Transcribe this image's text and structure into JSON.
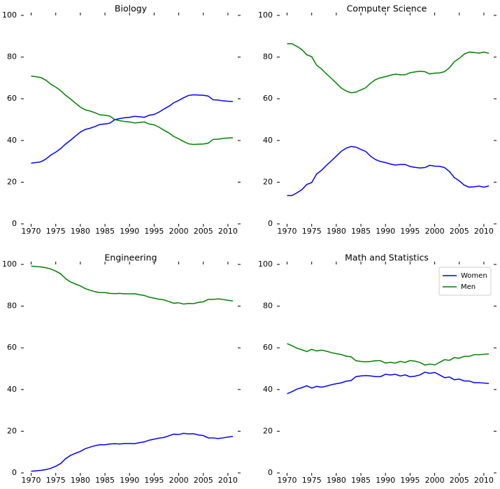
{
  "chart_data": [
    {
      "type": "line",
      "title": "Biology",
      "x": [
        1970,
        1971,
        1972,
        1973,
        1974,
        1975,
        1976,
        1977,
        1978,
        1979,
        1980,
        1981,
        1982,
        1983,
        1984,
        1985,
        1986,
        1987,
        1988,
        1989,
        1990,
        1991,
        1992,
        1993,
        1994,
        1995,
        1996,
        1997,
        1998,
        1999,
        2000,
        2001,
        2002,
        2003,
        2004,
        2005,
        2006,
        2007,
        2008,
        2009,
        2010,
        2011
      ],
      "series": [
        {
          "color": "#0000ff",
          "values": [
            29.1,
            29.4,
            29.8,
            31.1,
            33.0,
            34.4,
            36.1,
            38.3,
            40.1,
            42.1,
            44.0,
            45.3,
            45.9,
            46.7,
            47.7,
            47.9,
            48.3,
            50.0,
            50.5,
            50.9,
            51.1,
            51.6,
            51.4,
            51.1,
            52.1,
            52.5,
            53.6,
            55.1,
            56.4,
            58.1,
            59.2,
            60.5,
            61.6,
            61.9,
            61.8,
            61.7,
            61.3,
            59.5,
            59.4,
            59.0,
            58.8,
            58.7
          ]
        },
        {
          "color": "#008000",
          "values": [
            70.9,
            70.6,
            70.2,
            68.9,
            67.0,
            65.6,
            63.9,
            61.7,
            59.9,
            57.9,
            56.0,
            54.7,
            54.1,
            53.3,
            52.3,
            52.1,
            51.7,
            50.0,
            49.5,
            49.1,
            48.9,
            48.4,
            48.6,
            48.9,
            47.9,
            47.5,
            46.4,
            44.9,
            43.6,
            41.9,
            40.8,
            39.5,
            38.4,
            38.1,
            38.2,
            38.3,
            38.7,
            40.5,
            40.6,
            41.0,
            41.2,
            41.3
          ]
        }
      ],
      "xlim": [
        1968.5,
        2012
      ],
      "xticks": [
        1970,
        1975,
        1980,
        1985,
        1990,
        1995,
        2000,
        2005,
        2010
      ],
      "ylim": [
        0,
        100
      ],
      "yticks": [
        0,
        20,
        40,
        60,
        80,
        100
      ]
    },
    {
      "type": "line",
      "title": "Computer Science",
      "x": [
        1970,
        1971,
        1972,
        1973,
        1974,
        1975,
        1976,
        1977,
        1978,
        1979,
        1980,
        1981,
        1982,
        1983,
        1984,
        1985,
        1986,
        1987,
        1988,
        1989,
        1990,
        1991,
        1992,
        1993,
        1994,
        1995,
        1996,
        1997,
        1998,
        1999,
        2000,
        2001,
        2002,
        2003,
        2004,
        2005,
        2006,
        2007,
        2008,
        2009,
        2010,
        2011
      ],
      "series": [
        {
          "color": "#0000ff",
          "values": [
            13.6,
            13.6,
            14.9,
            16.4,
            18.9,
            19.8,
            23.9,
            25.7,
            28.1,
            30.2,
            32.5,
            34.8,
            36.3,
            37.1,
            36.8,
            35.7,
            34.7,
            32.4,
            30.8,
            29.9,
            29.4,
            28.7,
            28.2,
            28.5,
            28.5,
            27.5,
            27.1,
            26.8,
            27.0,
            28.1,
            27.7,
            27.6,
            27.0,
            25.1,
            22.2,
            20.6,
            18.6,
            17.6,
            17.8,
            18.1,
            17.6,
            18.2
          ]
        },
        {
          "color": "#008000",
          "values": [
            86.4,
            86.4,
            85.1,
            83.6,
            81.1,
            80.2,
            76.1,
            74.3,
            71.9,
            69.8,
            67.5,
            65.2,
            63.7,
            62.9,
            63.2,
            64.3,
            65.3,
            67.6,
            69.2,
            70.1,
            70.6,
            71.3,
            71.8,
            71.5,
            71.5,
            72.5,
            72.9,
            73.2,
            73.0,
            71.9,
            72.3,
            72.4,
            73.0,
            74.9,
            77.8,
            79.4,
            81.4,
            82.4,
            82.2,
            81.9,
            82.4,
            81.8
          ]
        }
      ],
      "xlim": [
        1968.5,
        2012
      ],
      "xticks": [
        1970,
        1975,
        1980,
        1985,
        1990,
        1995,
        2000,
        2005,
        2010
      ],
      "ylim": [
        0,
        100
      ],
      "yticks": [
        0,
        20,
        40,
        60,
        80,
        100
      ]
    },
    {
      "type": "line",
      "title": "Engineering",
      "x": [
        1970,
        1971,
        1972,
        1973,
        1974,
        1975,
        1976,
        1977,
        1978,
        1979,
        1980,
        1981,
        1982,
        1983,
        1984,
        1985,
        1986,
        1987,
        1988,
        1989,
        1990,
        1991,
        1992,
        1993,
        1994,
        1995,
        1996,
        1997,
        1998,
        1999,
        2000,
        2001,
        2002,
        2003,
        2004,
        2005,
        2006,
        2007,
        2008,
        2009,
        2010,
        2011
      ],
      "series": [
        {
          "color": "#0000ff",
          "values": [
            0.8,
            1.0,
            1.2,
            1.6,
            2.2,
            3.2,
            4.5,
            6.8,
            8.4,
            9.4,
            10.3,
            11.6,
            12.4,
            13.1,
            13.5,
            13.5,
            13.9,
            14.0,
            13.9,
            14.1,
            14.1,
            14.0,
            14.5,
            14.9,
            15.7,
            16.2,
            16.7,
            17.0,
            17.8,
            18.6,
            18.4,
            19.0,
            18.7,
            18.8,
            18.2,
            17.9,
            16.8,
            16.8,
            16.5,
            16.8,
            17.2,
            17.5
          ]
        },
        {
          "color": "#008000",
          "values": [
            99.2,
            99.0,
            98.8,
            98.4,
            97.8,
            96.8,
            95.5,
            93.2,
            91.6,
            90.6,
            89.7,
            88.4,
            87.6,
            86.9,
            86.5,
            86.5,
            86.1,
            86.0,
            86.1,
            85.9,
            85.9,
            86.0,
            85.5,
            85.1,
            84.3,
            83.8,
            83.3,
            83.0,
            82.2,
            81.4,
            81.6,
            81.0,
            81.3,
            81.2,
            81.8,
            82.1,
            83.2,
            83.2,
            83.5,
            83.2,
            82.8,
            82.5
          ]
        }
      ],
      "xlim": [
        1968.5,
        2012
      ],
      "xticks": [
        1970,
        1975,
        1980,
        1985,
        1990,
        1995,
        2000,
        2005,
        2010
      ],
      "ylim": [
        0,
        100
      ],
      "yticks": [
        0,
        20,
        40,
        60,
        80,
        100
      ]
    },
    {
      "type": "line",
      "title": "Math and Statistics",
      "x": [
        1970,
        1971,
        1972,
        1973,
        1974,
        1975,
        1976,
        1977,
        1978,
        1979,
        1980,
        1981,
        1982,
        1983,
        1984,
        1985,
        1986,
        1987,
        1988,
        1989,
        1990,
        1991,
        1992,
        1993,
        1994,
        1995,
        1996,
        1997,
        1998,
        1999,
        2000,
        2001,
        2002,
        2003,
        2004,
        2005,
        2006,
        2007,
        2008,
        2009,
        2010,
        2011
      ],
      "series": [
        {
          "name": "Women",
          "color": "#0000ff",
          "values": [
            38.0,
            39.0,
            40.2,
            40.9,
            41.8,
            40.7,
            41.5,
            41.1,
            41.6,
            42.3,
            42.8,
            43.2,
            44.0,
            44.3,
            46.2,
            46.5,
            46.7,
            46.5,
            46.2,
            46.2,
            47.3,
            47.0,
            47.3,
            46.5,
            47.0,
            46.1,
            46.4,
            47.0,
            48.3,
            47.8,
            48.2,
            47.0,
            45.7,
            46.0,
            44.7,
            45.0,
            44.1,
            44.1,
            43.3,
            43.3,
            43.1,
            42.9
          ]
        },
        {
          "name": "Men",
          "color": "#008000",
          "values": [
            62.0,
            61.0,
            59.8,
            59.1,
            58.2,
            59.3,
            58.5,
            58.9,
            58.4,
            57.7,
            57.2,
            56.8,
            56.0,
            55.7,
            53.8,
            53.5,
            53.3,
            53.5,
            53.8,
            53.8,
            52.7,
            53.0,
            52.7,
            53.5,
            53.0,
            53.9,
            53.6,
            53.0,
            51.7,
            52.2,
            51.8,
            53.0,
            54.3,
            54.0,
            55.3,
            55.0,
            55.9,
            55.9,
            56.7,
            56.7,
            56.9,
            57.1
          ]
        }
      ],
      "xlim": [
        1968.5,
        2012
      ],
      "xticks": [
        1970,
        1975,
        1980,
        1985,
        1990,
        1995,
        2000,
        2005,
        2010
      ],
      "ylim": [
        0,
        100
      ],
      "yticks": [
        0,
        20,
        40,
        60,
        80,
        100
      ],
      "legend": "upper right"
    }
  ]
}
